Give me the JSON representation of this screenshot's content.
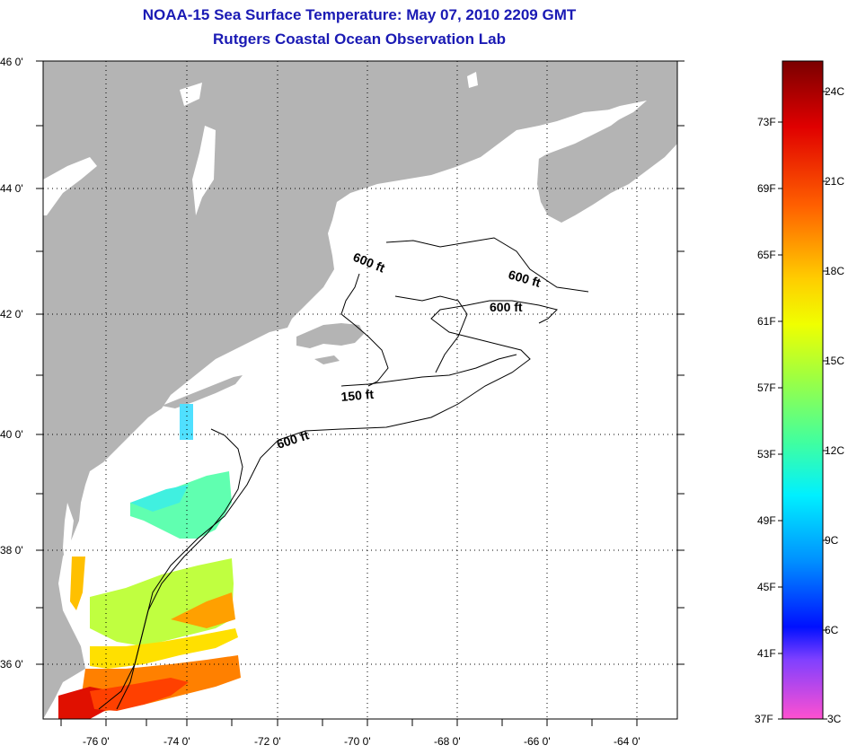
{
  "title": {
    "line1": "NOAA-15 Sea Surface Temperature:  May 07, 2010 2209 GMT",
    "line2": "Rutgers Coastal Ocean Observation Lab"
  },
  "map": {
    "lat_ticks": [
      "46 0'",
      "44 0'",
      "42 0'",
      "40 0'",
      "38 0'",
      "36 0'"
    ],
    "lon_ticks": [
      "-76 0'",
      "-74 0'",
      "-72 0'",
      "-70 0'",
      "-68 0'",
      "-66 0'",
      "-64 0'"
    ],
    "contour_labels": [
      "600 ft",
      "600 ft",
      "600 ft",
      "150 ft",
      "600 ft"
    ],
    "land_color": "#b4b4b4",
    "ocean_color": "#ffffff"
  },
  "colorbar": {
    "fahrenheit": [
      "73F",
      "69F",
      "65F",
      "61F",
      "57F",
      "53F",
      "49F",
      "45F",
      "41F",
      "37F"
    ],
    "celsius": [
      "24C",
      "21C",
      "18C",
      "15C",
      "12C",
      "9C",
      "6C",
      "3C"
    ]
  }
}
